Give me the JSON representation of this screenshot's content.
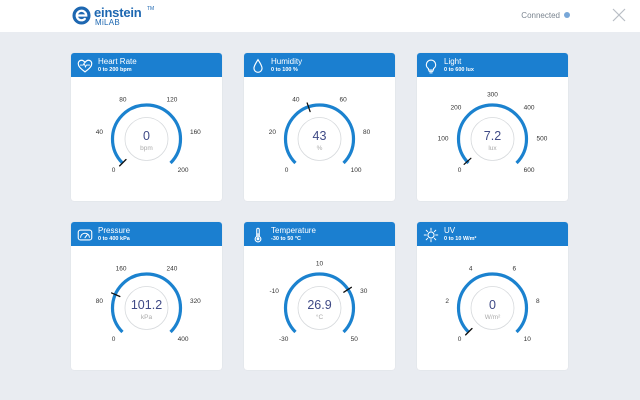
{
  "app": {
    "logo_text": "einstein",
    "logo_tm": "TM",
    "logo_sub": "MiLAB",
    "connection_status": "Connected"
  },
  "colors": {
    "accent": "#1b7fd0",
    "arc": "#1b82cf",
    "value_text": "#3f4a86",
    "background": "#e9ecf1",
    "status_dot": "#78a7d8"
  },
  "sensors": [
    {
      "title": "Heart Rate",
      "range": "0 to 200 bpm",
      "icon": "heart-icon",
      "value": "0",
      "unit": "bpm",
      "reading": 0,
      "min": 0,
      "max": 200,
      "ticks": [
        "0",
        "40",
        "80",
        "120",
        "160",
        "200"
      ]
    },
    {
      "title": "Humidity",
      "range": "0 to 100 %",
      "icon": "droplet-icon",
      "value": "43",
      "unit": "%",
      "reading": 43,
      "min": 0,
      "max": 100,
      "ticks": [
        "0",
        "20",
        "40",
        "60",
        "80",
        "100"
      ]
    },
    {
      "title": "Light",
      "range": "0 to 600 lux",
      "icon": "lightbulb-icon",
      "value": "7.2",
      "unit": "lux",
      "reading": 7.2,
      "min": 0,
      "max": 600,
      "ticks": [
        "0",
        "100",
        "200",
        "300",
        "400",
        "500",
        "600"
      ]
    },
    {
      "title": "Pressure",
      "range": "0 to 400 kPa",
      "icon": "gauge-icon",
      "value": "101.2",
      "unit": "kPa",
      "reading": 101.2,
      "min": 0,
      "max": 400,
      "ticks": [
        "0",
        "80",
        "160",
        "240",
        "320",
        "400"
      ]
    },
    {
      "title": "Temperature",
      "range": "-30 to 50 °C",
      "icon": "thermometer-icon",
      "value": "26.9",
      "unit": "°C",
      "reading": 26.9,
      "min": -30,
      "max": 50,
      "ticks": [
        "-30",
        "-10",
        "10",
        "30",
        "50"
      ]
    },
    {
      "title": "UV",
      "range": "0 to 10 W/m²",
      "icon": "sun-icon",
      "value": "0",
      "unit": "W/m²",
      "reading": 0,
      "min": 0,
      "max": 10,
      "ticks": [
        "0",
        "2",
        "4",
        "6",
        "8",
        "10"
      ]
    }
  ]
}
